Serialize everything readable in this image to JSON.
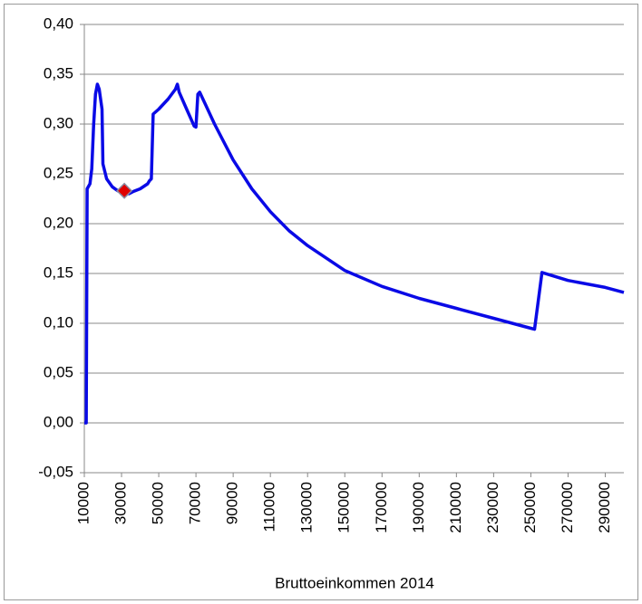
{
  "chart_data": {
    "type": "line",
    "x_label": "Bruttoeinkommen 2014",
    "x": [
      10000,
      11000,
      11500,
      13000,
      14000,
      15000,
      16000,
      17000,
      18000,
      19500,
      20000,
      22000,
      25000,
      28000,
      31000,
      34000,
      36000,
      40000,
      44000,
      45000,
      46000,
      47000,
      50000,
      55000,
      59000,
      60000,
      61000,
      65000,
      69000,
      70000,
      71000,
      72000,
      75000,
      80000,
      90000,
      100000,
      110000,
      120000,
      130000,
      150000,
      170000,
      190000,
      210000,
      230000,
      250000,
      252000,
      256000,
      270000,
      290000,
      300000
    ],
    "series": [
      {
        "color": "#0a0ae6",
        "values": [
          0,
          0,
          0.235,
          0.24,
          0.255,
          0.3,
          0.33,
          0.34,
          0.335,
          0.315,
          0.26,
          0.245,
          0.237,
          0.233,
          0.232,
          0.23,
          0.232,
          0.235,
          0.24,
          0.243,
          0.245,
          0.31,
          0.315,
          0.325,
          0.335,
          0.34,
          0.332,
          0.315,
          0.298,
          0.297,
          0.33,
          0.332,
          0.32,
          0.3,
          0.264,
          0.235,
          0.212,
          0.193,
          0.178,
          0.153,
          0.137,
          0.125,
          0.115,
          0.105,
          0.095,
          0.094,
          0.151,
          0.143,
          0.136,
          0.131
        ]
      }
    ],
    "highlight": {
      "x": 31500,
      "y": 0.233,
      "color": "#e00000"
    },
    "xlim": [
      10000,
      300000
    ],
    "xticks": [
      10000,
      30000,
      50000,
      70000,
      90000,
      110000,
      130000,
      150000,
      170000,
      190000,
      210000,
      230000,
      250000,
      270000,
      290000
    ],
    "ylim": [
      -0.05,
      0.4
    ],
    "yticks": [
      {
        "value": -0.05,
        "label": "-0,05"
      },
      {
        "value": 0,
        "label": "0,00"
      },
      {
        "value": 0.05,
        "label": "0,05"
      },
      {
        "value": 0.1,
        "label": "0,10"
      },
      {
        "value": 0.15,
        "label": "0,15"
      },
      {
        "value": 0.2,
        "label": "0,20"
      },
      {
        "value": 0.25,
        "label": "0,25"
      },
      {
        "value": 0.3,
        "label": "0,30"
      },
      {
        "value": 0.35,
        "label": "0,35"
      },
      {
        "value": 0.4,
        "label": "0,40"
      }
    ],
    "grid": true
  }
}
